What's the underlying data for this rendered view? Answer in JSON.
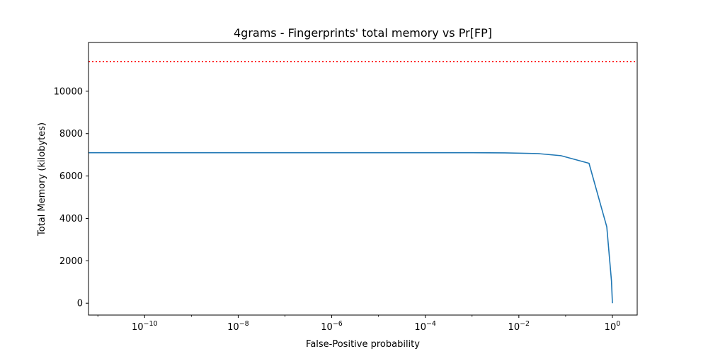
{
  "chart_data": {
    "type": "line",
    "title": "4grams - Fingerprints' total memory vs Pr[FP]",
    "xlabel": "False-Positive probability",
    "ylabel": "Total Memory (kilobytes)",
    "xscale": "log",
    "xlim_log10": [
      -11.2,
      0.53
    ],
    "ylim": [
      -560,
      12300
    ],
    "grid": false,
    "x_ticks": [
      {
        "exp": -10,
        "base": "10",
        "sup": "−10"
      },
      {
        "exp": -8,
        "base": "10",
        "sup": "−8"
      },
      {
        "exp": -6,
        "base": "10",
        "sup": "−6"
      },
      {
        "exp": -4,
        "base": "10",
        "sup": "−4"
      },
      {
        "exp": -2,
        "base": "10",
        "sup": "−2"
      },
      {
        "exp": 0,
        "base": "10",
        "sup": "0"
      }
    ],
    "y_ticks": [
      {
        "value": 0,
        "label": "0"
      },
      {
        "value": 2000,
        "label": "2000"
      },
      {
        "value": 4000,
        "label": "4000"
      },
      {
        "value": 6000,
        "label": "6000"
      },
      {
        "value": 8000,
        "label": "8000"
      },
      {
        "value": 10000,
        "label": "10000"
      }
    ],
    "series": [
      {
        "name": "fingerprints",
        "color": "#1f77b4",
        "log10_x": [
          -11.2,
          -10,
          -8,
          -6,
          -4,
          -3,
          -2.3,
          -1.6,
          -1.1,
          -0.5,
          -0.12,
          -0.02,
          0
        ],
        "values": [
          7100,
          7100,
          7100,
          7100,
          7100,
          7100,
          7090,
          7060,
          6960,
          6600,
          3600,
          1050,
          0
        ]
      }
    ],
    "reference_line": {
      "value": 11400,
      "color": "#ff0000",
      "style": "dotted"
    }
  }
}
